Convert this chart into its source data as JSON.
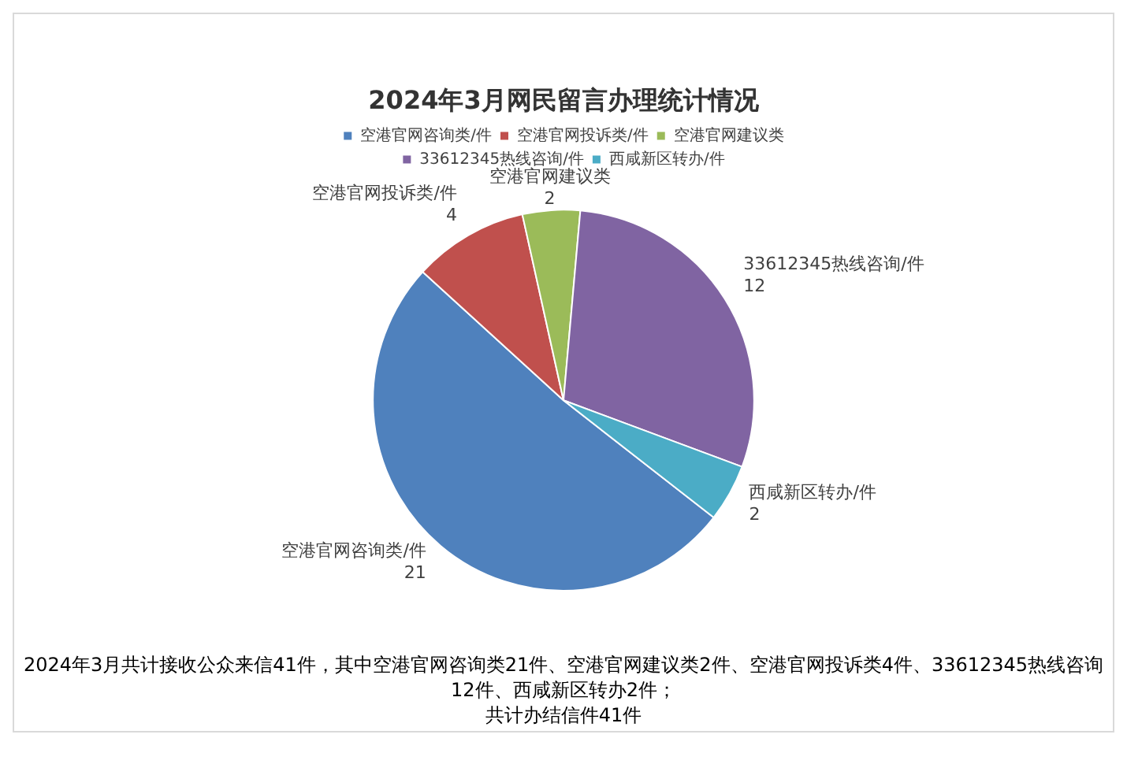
{
  "chart_data": {
    "type": "pie",
    "title": "2024年3月网民留言办理统计情况",
    "categories": [
      "空港官网咨询类/件",
      "空港官网投诉类/件",
      "空港官网建议类",
      "33612345热线咨询/件",
      "西咸新区转办/件"
    ],
    "values": [
      21,
      4,
      2,
      12,
      2
    ],
    "colors": [
      "#4f81bd",
      "#c0504d",
      "#9bbb59",
      "#8064a2",
      "#4bacc6"
    ],
    "data_labels": true,
    "legend": "top",
    "annotations": [
      "2024年3月共计接收公众来信41件，其中空港官网咨询类21件、空港官网建议类2件、空港官网投诉类4件、33612345热线咨询12件、西咸新区转办2件；",
      "共计办结信件41件"
    ]
  }
}
